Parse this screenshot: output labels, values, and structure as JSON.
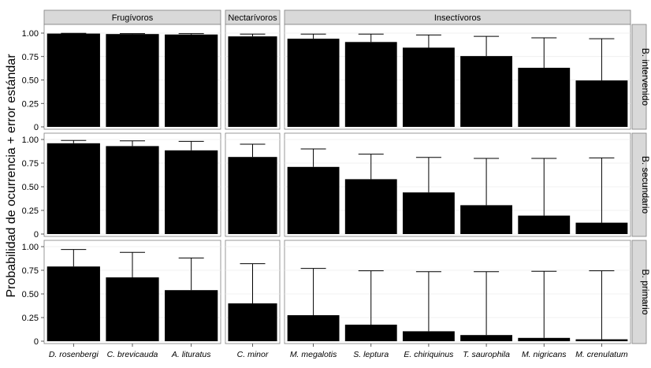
{
  "chart_data": {
    "type": "bar",
    "ylabel": "Probabilidad de ocurrencia + error estándar",
    "xlabel": "",
    "ylim": [
      0,
      1.0
    ],
    "yticks": [
      "0",
      "0.25",
      "0.50",
      "0.75",
      "1.00"
    ],
    "ytick_values": [
      0,
      0.25,
      0.5,
      0.75,
      1.0
    ],
    "grid": true,
    "layout": "facet-grid",
    "column_facets": [
      {
        "label": "Frugívoros",
        "categories": [
          "D. rosenbergi",
          "C. brevicauda",
          "A. lituratus"
        ]
      },
      {
        "label": "Nectarívoros",
        "categories": [
          "C. minor"
        ]
      },
      {
        "label": "Insectívoros",
        "categories": [
          "M. megalotis",
          "S. leptura",
          "E. chiriquinus",
          "T. saurophila",
          "M. nigricans",
          "M. crenulatum"
        ]
      }
    ],
    "row_facets": [
      {
        "label": "B. intervenido",
        "values": [
          0.995,
          0.99,
          0.985,
          0.965,
          0.94,
          0.905,
          0.845,
          0.755,
          0.63,
          0.495
        ],
        "upper": [
          0.998,
          0.995,
          0.995,
          0.99,
          0.99,
          0.99,
          0.98,
          0.965,
          0.95,
          0.94
        ]
      },
      {
        "label": "B. secundario",
        "values": [
          0.96,
          0.93,
          0.885,
          0.815,
          0.71,
          0.58,
          0.44,
          0.305,
          0.195,
          0.12
        ],
        "upper": [
          0.99,
          0.985,
          0.98,
          0.95,
          0.9,
          0.845,
          0.81,
          0.8,
          0.8,
          0.805
        ]
      },
      {
        "label": "B. primario",
        "values": [
          0.79,
          0.675,
          0.54,
          0.4,
          0.275,
          0.175,
          0.105,
          0.065,
          0.035,
          0.02
        ],
        "upper": [
          0.97,
          0.94,
          0.88,
          0.82,
          0.77,
          0.745,
          0.735,
          0.735,
          0.74,
          0.745
        ]
      }
    ],
    "colors": {
      "bar": "#000000",
      "panel_background": "#ffffff",
      "grid": "#ebebeb",
      "strip_background": "#d9d9d9",
      "border": "#7f7f7f"
    }
  }
}
